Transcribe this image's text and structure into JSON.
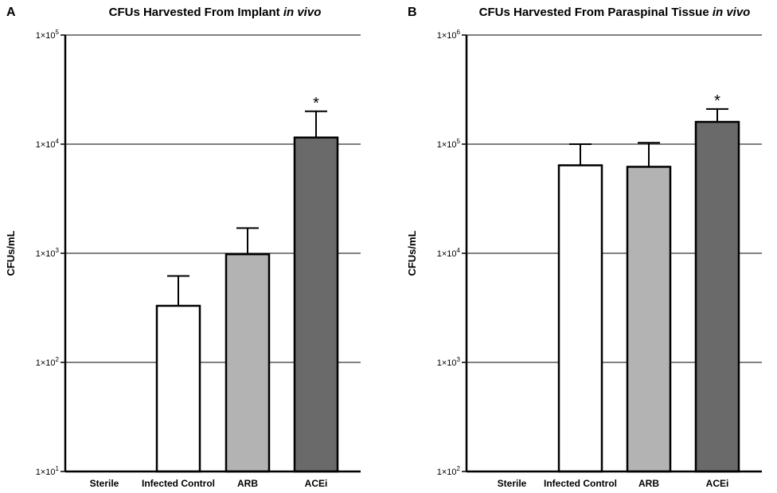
{
  "chart_data": [
    {
      "panel_label": "A",
      "type": "bar",
      "title_plain": "CFUs Harvested From Implant ",
      "title_italic": "in vivo",
      "ylabel": "CFUs/mL",
      "yscale": "log",
      "ylim": [
        10,
        100000
      ],
      "yticks": [
        {
          "base": "1×10",
          "exp": "1"
        },
        {
          "base": "1×10",
          "exp": "2"
        },
        {
          "base": "1×10",
          "exp": "3"
        },
        {
          "base": "1×10",
          "exp": "4"
        },
        {
          "base": "1×10",
          "exp": "5"
        }
      ],
      "grid": true,
      "categories": [
        "Sterile",
        "Infected Control",
        "ARB",
        "ACEi"
      ],
      "values": [
        null,
        330,
        980,
        11500
      ],
      "error_upper": [
        null,
        620,
        1700,
        20000
      ],
      "colors": [
        "#ffffff",
        "#ffffff",
        "#b3b3b3",
        "#6a6a6a"
      ],
      "annotations": [
        "",
        "",
        "",
        "*"
      ]
    },
    {
      "panel_label": "B",
      "type": "bar",
      "title_plain": "CFUs Harvested From Paraspinal Tissue ",
      "title_italic": "in vivo",
      "ylabel": "CFUs/mL",
      "yscale": "log",
      "ylim": [
        100,
        1000000
      ],
      "yticks": [
        {
          "base": "1×10",
          "exp": "2"
        },
        {
          "base": "1×10",
          "exp": "3"
        },
        {
          "base": "1×10",
          "exp": "4"
        },
        {
          "base": "1×10",
          "exp": "5"
        },
        {
          "base": "1×10",
          "exp": "6"
        }
      ],
      "grid": true,
      "categories": [
        "Sterile",
        "Infected Control",
        "ARB",
        "ACEi"
      ],
      "values": [
        null,
        64000,
        62000,
        160000
      ],
      "error_upper": [
        null,
        100000,
        103000,
        210000
      ],
      "colors": [
        "#ffffff",
        "#ffffff",
        "#b3b3b3",
        "#6a6a6a"
      ],
      "annotations": [
        "",
        "",
        "",
        "*"
      ]
    }
  ]
}
